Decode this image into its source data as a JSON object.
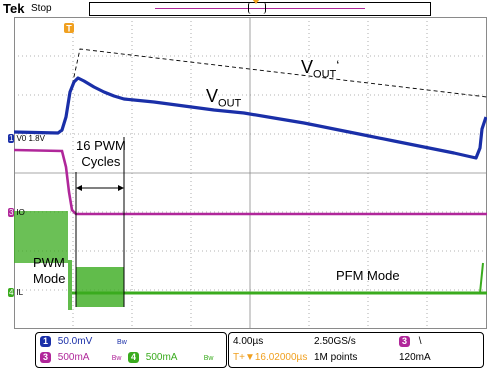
{
  "header": {
    "brand": "Tek",
    "state": "Stop"
  },
  "annotations": {
    "vout_prime": "V",
    "vout_prime_sub": "OUT",
    "vout_prime_mark": "‘",
    "vout": "V",
    "vout_sub": "OUT",
    "cycles_line1": "16 PWM",
    "cycles_line2": "Cycles",
    "pwm_line1": "PWM",
    "pwm_line2": "Mode",
    "pfm": "PFM Mode"
  },
  "channel_markers": {
    "ch1": "V0 1.8V",
    "ch3": "IO",
    "ch4": "IL"
  },
  "readout": {
    "ch1_num": "1",
    "ch1_scale": "50.0mV",
    "ch1_bw": "Bw",
    "ch3_num": "3",
    "ch3_scale": "500mA",
    "ch3_bw": "Bw",
    "ch4_num": "4",
    "ch4_scale": "500mA",
    "ch4_bw": "Bw",
    "timebase": "4.00µs",
    "trigger_pos": "T+▼16.02000µs",
    "sample_rate": "2.50GS/s",
    "record_len": "1M points",
    "trig_ch": "3",
    "trig_slope": "\\",
    "trig_level": "120mA"
  },
  "colors": {
    "ch1": "#1a2fa8",
    "ch3": "#b0279a",
    "ch4": "#3aab1e",
    "grid": "#9a9a9a",
    "trigger": "#f0a020"
  }
}
